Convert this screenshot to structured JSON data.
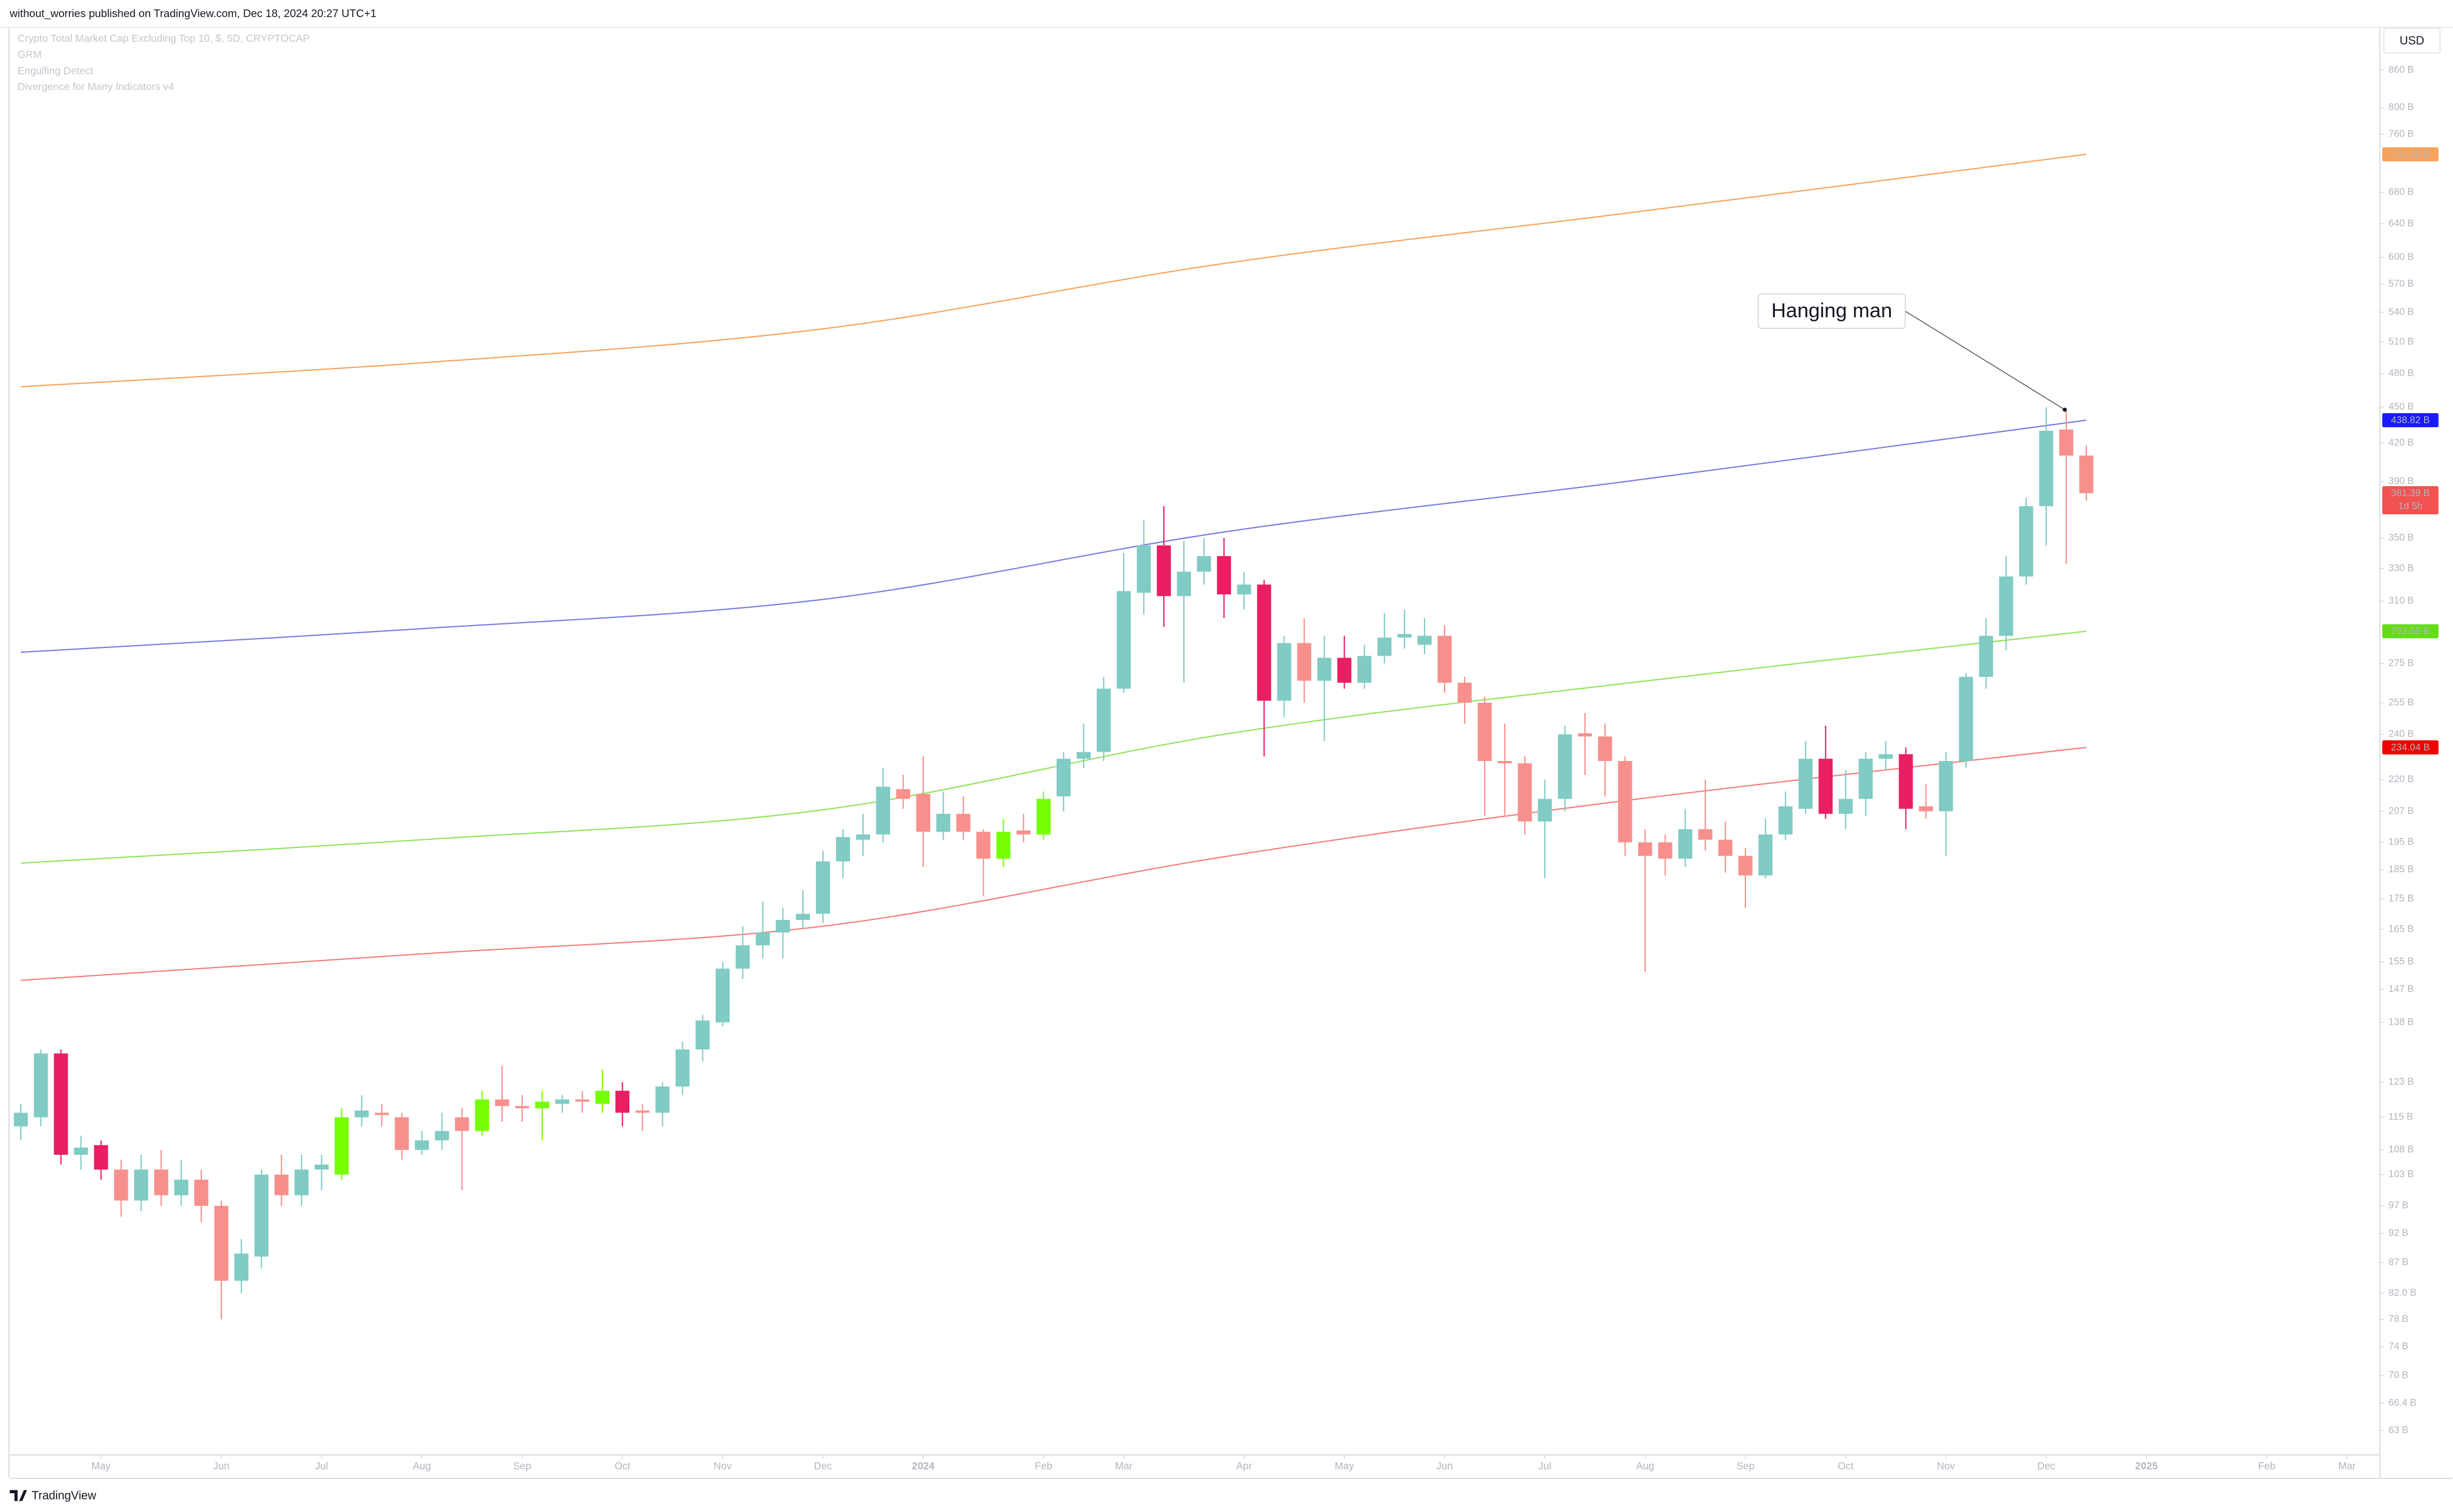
{
  "chart_data": {
    "type": "candlestick",
    "header": "without_worries published on TradingView.com, Dec 18, 2024 20:27 UTC+1",
    "legend": [
      "Crypto Total Market Cap Excluding Top 10, $, 5D, CRYPTOCAP",
      "GRM",
      "Engulfing Detect",
      "Divergence for Many Indicators v4"
    ],
    "currency": "USD",
    "brand": "TradingView",
    "annotation": "Hanging man",
    "log_scale": true,
    "up_color": "#80cbc4",
    "down_color": "#f7908c",
    "highlight_colors": {
      "2": "#e91e63",
      "4": "#e91e63",
      "30": "#e91e63",
      "57": "#e91e63",
      "60": "#e91e63",
      "62": "#e91e63",
      "66": "#e91e63",
      "90": "#e91e63",
      "94": "#e91e63",
      "16": "#76ff03",
      "23": "#76ff03",
      "26": "#76ff03",
      "29": "#76ff03",
      "49": "#76ff03",
      "51": "#76ff03"
    },
    "candles": [
      [
        113,
        118,
        110,
        116
      ],
      [
        115,
        131,
        113,
        130
      ],
      [
        130,
        131,
        105,
        107
      ],
      [
        107,
        111,
        104,
        108.5
      ],
      [
        109,
        110,
        102,
        104
      ],
      [
        104,
        106,
        95,
        98
      ],
      [
        98,
        107,
        96,
        104
      ],
      [
        104,
        108,
        97,
        99
      ],
      [
        99,
        106,
        97,
        102
      ],
      [
        102,
        104,
        94,
        97
      ],
      [
        97,
        98,
        78,
        84
      ],
      [
        84,
        91,
        82,
        88.5
      ],
      [
        88,
        104,
        86,
        103
      ],
      [
        103,
        107,
        97,
        99
      ],
      [
        99,
        107,
        97,
        104
      ],
      [
        104,
        107,
        100,
        105
      ],
      [
        103,
        117,
        102,
        115
      ],
      [
        115,
        120,
        113,
        116.5
      ],
      [
        116,
        118,
        113,
        115.5
      ],
      [
        115,
        116,
        106,
        108
      ],
      [
        108,
        112,
        107,
        110
      ],
      [
        110,
        116,
        108,
        112
      ],
      [
        115,
        117,
        100,
        112
      ],
      [
        112,
        121,
        111,
        119
      ],
      [
        119,
        127,
        114,
        117.5
      ],
      [
        117.5,
        120,
        114,
        117
      ],
      [
        117,
        121,
        110,
        118.5
      ],
      [
        118,
        120,
        116,
        119
      ],
      [
        119,
        121,
        116,
        118.5
      ],
      [
        118,
        126,
        116,
        121
      ],
      [
        121,
        123,
        113,
        116
      ],
      [
        116.5,
        118,
        112,
        116
      ],
      [
        116,
        123,
        113,
        122
      ],
      [
        122,
        133,
        120,
        131
      ],
      [
        131,
        140,
        128,
        138.5
      ],
      [
        138,
        155,
        137,
        153
      ],
      [
        153,
        166,
        150,
        160
      ],
      [
        160,
        174,
        156,
        164
      ],
      [
        164,
        172,
        156,
        168
      ],
      [
        168,
        178,
        165,
        170
      ],
      [
        170,
        192,
        167,
        188
      ],
      [
        188,
        200,
        182,
        197
      ],
      [
        196,
        206,
        190,
        198
      ],
      [
        198,
        225,
        195,
        217
      ],
      [
        216,
        222,
        208,
        212
      ],
      [
        214,
        230,
        186,
        199
      ],
      [
        199,
        215,
        196,
        206
      ],
      [
        206,
        213,
        196,
        199
      ],
      [
        199,
        200,
        176,
        189
      ],
      [
        189,
        204,
        186,
        199
      ],
      [
        199.5,
        206,
        195,
        198
      ],
      [
        198,
        215,
        196,
        212
      ],
      [
        213,
        232,
        207,
        229
      ],
      [
        229,
        245,
        225,
        232
      ],
      [
        232,
        268,
        228,
        262
      ],
      [
        262,
        340,
        260,
        316
      ],
      [
        315,
        362,
        302,
        345
      ],
      [
        345,
        372,
        295,
        313
      ],
      [
        313,
        348,
        265,
        328
      ],
      [
        328,
        350,
        320,
        338
      ],
      [
        338,
        350,
        300,
        314
      ],
      [
        314,
        328,
        305,
        320
      ],
      [
        320,
        323,
        230,
        256
      ],
      [
        256,
        290,
        248,
        286
      ],
      [
        286,
        300,
        255,
        266
      ],
      [
        266,
        290,
        237,
        278
      ],
      [
        278,
        290,
        262,
        265
      ],
      [
        265,
        285,
        262,
        279
      ],
      [
        279,
        303,
        275,
        289
      ],
      [
        289,
        305,
        283,
        291
      ],
      [
        285,
        300,
        280,
        290
      ],
      [
        290,
        296,
        260,
        265
      ],
      [
        265,
        268,
        245,
        255
      ],
      [
        255,
        258,
        205,
        228
      ],
      [
        228,
        245,
        205,
        227
      ],
      [
        227,
        230,
        198,
        203
      ],
      [
        203,
        220,
        182,
        212
      ],
      [
        212,
        244,
        207,
        240
      ],
      [
        240.5,
        250,
        222,
        239
      ],
      [
        239,
        245,
        213,
        228
      ],
      [
        228,
        230,
        190,
        195
      ],
      [
        195,
        200,
        152,
        190
      ],
      [
        195,
        198,
        183,
        189
      ],
      [
        189,
        208,
        186,
        200
      ],
      [
        200,
        220,
        192,
        196
      ],
      [
        196,
        203,
        184,
        190
      ],
      [
        190,
        193,
        172,
        183
      ],
      [
        183,
        204,
        182,
        198
      ],
      [
        198,
        215,
        196,
        209
      ],
      [
        208,
        237,
        206,
        229
      ],
      [
        229,
        244,
        204,
        206
      ],
      [
        206,
        224,
        200,
        212
      ],
      [
        212,
        232,
        205,
        229
      ],
      [
        229,
        237,
        224,
        231
      ],
      [
        231,
        234,
        200,
        208
      ],
      [
        209,
        218,
        204,
        207
      ],
      [
        207,
        232,
        190,
        228
      ],
      [
        228,
        270,
        225,
        268
      ],
      [
        268,
        300,
        262,
        290
      ],
      [
        290,
        338,
        282,
        325
      ],
      [
        325,
        378,
        320,
        372
      ],
      [
        372,
        450,
        345,
        430
      ],
      [
        431,
        448,
        333,
        410
      ],
      [
        410,
        418,
        376,
        381.39
      ]
    ],
    "last_price_label": "381.39 B",
    "countdown": "1d 5h",
    "last_price_color": "#f05350",
    "lines": [
      {
        "color": "#f7a35c",
        "x": [
          0,
          20,
          40,
          60,
          80,
          103
        ],
        "values": [
          468,
          490,
          523,
          593,
          653,
          731.36
        ],
        "last_label": "731.36 B"
      },
      {
        "color": "#7b7be0",
        "x": [
          0,
          20,
          40,
          60,
          80,
          103
        ],
        "values": [
          281,
          294,
          311,
          354,
          390,
          438.82
        ],
        "last_label": "438.82 B",
        "label_color": "#1a1aff"
      },
      {
        "color": "#8fe35a",
        "x": [
          0,
          20,
          40,
          60,
          80,
          103
        ],
        "values": [
          187.4,
          196,
          207.6,
          240,
          264.7,
          292.55
        ],
        "last_label": "292.55 B",
        "label_color": "#64dd17"
      },
      {
        "color": "#f77b7b",
        "x": [
          0,
          20,
          40,
          60,
          80,
          103
        ],
        "values": [
          149.6,
          157.4,
          166,
          189.7,
          211.3,
          234.04
        ],
        "last_label": "234.04 B",
        "label_color": "#f00000"
      }
    ],
    "xlim": [
      -0.55,
      117.6
    ],
    "ylim": [
      60.2,
      932
    ],
    "yticks": [
      {
        "value": 860,
        "label": "860 B"
      },
      {
        "value": 800,
        "label": "800 B"
      },
      {
        "value": 760,
        "label": "760 B"
      },
      {
        "value": 680,
        "label": "680 B"
      },
      {
        "value": 640,
        "label": "640 B"
      },
      {
        "value": 600,
        "label": "600 B"
      },
      {
        "value": 570,
        "label": "570 B"
      },
      {
        "value": 540,
        "label": "540 B"
      },
      {
        "value": 510,
        "label": "510 B"
      },
      {
        "value": 480,
        "label": "480 B"
      },
      {
        "value": 450,
        "label": "450 B"
      },
      {
        "value": 420,
        "label": "420 B"
      },
      {
        "value": 390,
        "label": "390 B"
      },
      {
        "value": 350,
        "label": "350 B"
      },
      {
        "value": 330,
        "label": "330 B"
      },
      {
        "value": 310,
        "label": "310 B"
      },
      {
        "value": 275,
        "label": "275 B"
      },
      {
        "value": 255,
        "label": "255 B"
      },
      {
        "value": 240,
        "label": "240 B"
      },
      {
        "value": 220,
        "label": "220 B"
      },
      {
        "value": 207,
        "label": "207 B"
      },
      {
        "value": 195,
        "label": "195 B"
      },
      {
        "value": 185,
        "label": "185 B"
      },
      {
        "value": 175,
        "label": "175 B"
      },
      {
        "value": 165,
        "label": "165 B"
      },
      {
        "value": 155,
        "label": "155 B"
      },
      {
        "value": 147,
        "label": "147 B"
      },
      {
        "value": 138,
        "label": "138 B"
      },
      {
        "value": 123,
        "label": "123 B"
      },
      {
        "value": 115,
        "label": "115 B"
      },
      {
        "value": 108,
        "label": "108 B"
      },
      {
        "value": 103,
        "label": "103 B"
      },
      {
        "value": 97,
        "label": "97 B"
      },
      {
        "value": 92,
        "label": "92 B"
      },
      {
        "value": 87,
        "label": "87 B"
      },
      {
        "value": 82,
        "label": "82.0 B"
      },
      {
        "value": 78,
        "label": "78 B"
      },
      {
        "value": 74,
        "label": "74 B"
      },
      {
        "value": 70,
        "label": "70 B"
      },
      {
        "value": 66.4,
        "label": "66.4 B"
      },
      {
        "value": 63,
        "label": "63 B"
      }
    ],
    "xticks": [
      {
        "value": 4,
        "label": "May"
      },
      {
        "value": 10,
        "label": "Jun"
      },
      {
        "value": 15,
        "label": "Jul"
      },
      {
        "value": 20,
        "label": "Aug"
      },
      {
        "value": 25,
        "label": "Sep"
      },
      {
        "value": 30,
        "label": "Oct"
      },
      {
        "value": 35,
        "label": "Nov"
      },
      {
        "value": 40,
        "label": "Dec"
      },
      {
        "value": 45,
        "label": "2024"
      },
      {
        "value": 51,
        "label": "Feb"
      },
      {
        "value": 55,
        "label": "Mar"
      },
      {
        "value": 61,
        "label": "Apr"
      },
      {
        "value": 66,
        "label": "May"
      },
      {
        "value": 71,
        "label": "Jun"
      },
      {
        "value": 76,
        "label": "Jul"
      },
      {
        "value": 81,
        "label": "Aug"
      },
      {
        "value": 86,
        "label": "Sep"
      },
      {
        "value": 91,
        "label": "Oct"
      },
      {
        "value": 96,
        "label": "Nov"
      },
      {
        "value": 101,
        "label": "Dec"
      },
      {
        "value": 106,
        "label": "2025"
      },
      {
        "value": 112,
        "label": "Feb"
      },
      {
        "value": 116,
        "label": "Mar"
      }
    ]
  }
}
